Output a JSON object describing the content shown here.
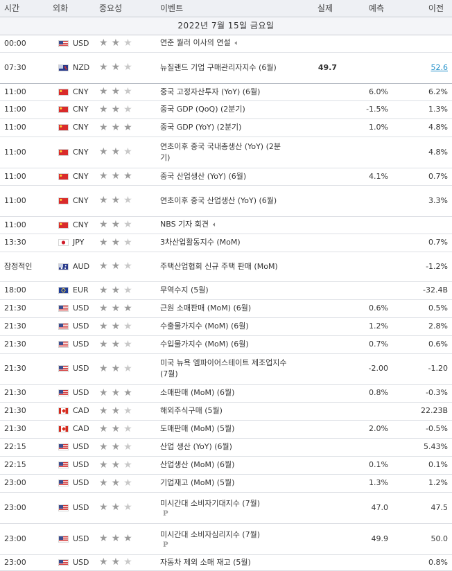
{
  "columns": {
    "time": "시간",
    "currency": "외화",
    "importance": "중요성",
    "event": "이벤트",
    "actual": "실제",
    "forecast": "예측",
    "previous": "이전"
  },
  "date_label": "2022년 7월 15일 금요일",
  "events": [
    {
      "time": "00:00",
      "flag": "us",
      "flag_icon": "us-flag-icon",
      "currency": "USD",
      "importance": 2,
      "event": "연준 월러 이사의 연설",
      "speech": true,
      "actual": "",
      "forecast": "",
      "previous": "",
      "h": 25
    },
    {
      "time": "07:30",
      "flag": "nz",
      "flag_icon": "nz-flag-icon",
      "currency": "NZD",
      "importance": 2,
      "event": "뉴질랜드 기업 구매관리자지수 (6월)",
      "actual": "49.7",
      "forecast": "",
      "previous": "52.6",
      "previous_link": true,
      "h": 45,
      "sep": true
    },
    {
      "time": "11:00",
      "flag": "cn",
      "flag_icon": "cn-flag-icon",
      "currency": "CNY",
      "importance": 2,
      "event": "중국 고정자산투자 (YoY) (6월)",
      "actual": "",
      "forecast": "6.0%",
      "previous": "6.2%",
      "h": 25
    },
    {
      "time": "11:00",
      "flag": "cn",
      "flag_icon": "cn-flag-icon",
      "currency": "CNY",
      "importance": 2,
      "event": "중국 GDP (QoQ) (2분기)",
      "actual": "",
      "forecast": "-1.5%",
      "previous": "1.3%",
      "h": 26
    },
    {
      "time": "11:00",
      "flag": "cn",
      "flag_icon": "cn-flag-icon",
      "currency": "CNY",
      "importance": 3,
      "event": "중국 GDP (YoY) (2분기)",
      "actual": "",
      "forecast": "1.0%",
      "previous": "4.8%",
      "h": 26
    },
    {
      "time": "11:00",
      "flag": "cn",
      "flag_icon": "cn-flag-icon",
      "currency": "CNY",
      "importance": 2,
      "event": "연초이후 중국 국내총생산 (YoY) (2분기)",
      "actual": "",
      "forecast": "",
      "previous": "4.8%",
      "h": 45
    },
    {
      "time": "11:00",
      "flag": "cn",
      "flag_icon": "cn-flag-icon",
      "currency": "CNY",
      "importance": 3,
      "event": "중국 산업생산 (YoY) (6월)",
      "actual": "",
      "forecast": "4.1%",
      "previous": "0.7%",
      "h": 25
    },
    {
      "time": "11:00",
      "flag": "cn",
      "flag_icon": "cn-flag-icon",
      "currency": "CNY",
      "importance": 2,
      "event": "연초이후 중국 산업생산 (YoY) (6월)",
      "actual": "",
      "forecast": "",
      "previous": "3.3%",
      "h": 45
    },
    {
      "time": "11:00",
      "flag": "cn",
      "flag_icon": "cn-flag-icon",
      "currency": "CNY",
      "importance": 2,
      "event": "NBS 기자 회견",
      "speech": true,
      "actual": "",
      "forecast": "",
      "previous": "",
      "h": 25
    },
    {
      "time": "13:30",
      "flag": "jp",
      "flag_icon": "jp-flag-icon",
      "currency": "JPY",
      "importance": 2,
      "event": "3차산업활동지수 (MoM)",
      "actual": "",
      "forecast": "",
      "previous": "0.7%",
      "h": 26
    },
    {
      "time": "잠정적인",
      "flag": "au",
      "flag_icon": "au-flag-icon",
      "currency": "AUD",
      "importance": 2,
      "event": "주택산업협회 신규 주택 판매 (MoM)",
      "actual": "",
      "forecast": "",
      "previous": "-1.2%",
      "h": 43
    },
    {
      "time": "18:00",
      "flag": "eu",
      "flag_icon": "eu-flag-icon",
      "currency": "EUR",
      "importance": 2,
      "event": "무역수지 (5월)",
      "actual": "",
      "forecast": "",
      "previous": "-32.4B",
      "h": 26
    },
    {
      "time": "21:30",
      "flag": "us",
      "flag_icon": "us-flag-icon",
      "currency": "USD",
      "importance": 3,
      "event": "근원 소매판매 (MoM) (6월)",
      "actual": "",
      "forecast": "0.6%",
      "previous": "0.5%",
      "h": 26
    },
    {
      "time": "21:30",
      "flag": "us",
      "flag_icon": "us-flag-icon",
      "currency": "USD",
      "importance": 2,
      "event": "수출물가지수 (MoM) (6월)",
      "actual": "",
      "forecast": "1.2%",
      "previous": "2.8%",
      "h": 26
    },
    {
      "time": "21:30",
      "flag": "us",
      "flag_icon": "us-flag-icon",
      "currency": "USD",
      "importance": 2,
      "event": "수입물가지수 (MoM) (6월)",
      "actual": "",
      "forecast": "0.7%",
      "previous": "0.6%",
      "h": 26
    },
    {
      "time": "21:30",
      "flag": "us",
      "flag_icon": "us-flag-icon",
      "currency": "USD",
      "importance": 2,
      "event": "미국 뉴욕 엠파이어스테이트 제조업지수 (7월)",
      "actual": "",
      "forecast": "-2.00",
      "previous": "-1.20",
      "h": 44
    },
    {
      "time": "21:30",
      "flag": "us",
      "flag_icon": "us-flag-icon",
      "currency": "USD",
      "importance": 3,
      "event": "소매판매 (MoM) (6월)",
      "actual": "",
      "forecast": "0.8%",
      "previous": "-0.3%",
      "h": 26
    },
    {
      "time": "21:30",
      "flag": "ca",
      "flag_icon": "ca-flag-icon",
      "currency": "CAD",
      "importance": 2,
      "event": "해외주식구매 (5월)",
      "actual": "",
      "forecast": "",
      "previous": "22.23B",
      "h": 26
    },
    {
      "time": "21:30",
      "flag": "ca",
      "flag_icon": "ca-flag-icon",
      "currency": "CAD",
      "importance": 2,
      "event": "도매판매 (MoM) (5월)",
      "actual": "",
      "forecast": "2.0%",
      "previous": "-0.5%",
      "h": 26
    },
    {
      "time": "22:15",
      "flag": "us",
      "flag_icon": "us-flag-icon",
      "currency": "USD",
      "importance": 2,
      "event": "산업 생산 (YoY) (6월)",
      "actual": "",
      "forecast": "",
      "previous": "5.43%",
      "h": 26
    },
    {
      "time": "22:15",
      "flag": "us",
      "flag_icon": "us-flag-icon",
      "currency": "USD",
      "importance": 2,
      "event": "산업생산 (MoM) (6월)",
      "actual": "",
      "forecast": "0.1%",
      "previous": "0.1%",
      "h": 26
    },
    {
      "time": "23:00",
      "flag": "us",
      "flag_icon": "us-flag-icon",
      "currency": "USD",
      "importance": 2,
      "event": "기업재고 (MoM) (5월)",
      "actual": "",
      "forecast": "1.3%",
      "previous": "1.2%",
      "h": 26
    },
    {
      "time": "23:00",
      "flag": "us",
      "flag_icon": "us-flag-icon",
      "currency": "USD",
      "importance": 2,
      "event": "미시간대 소비자기대지수 (7월)",
      "preliminary": true,
      "actual": "",
      "forecast": "47.0",
      "previous": "47.5",
      "h": 45
    },
    {
      "time": "23:00",
      "flag": "us",
      "flag_icon": "us-flag-icon",
      "currency": "USD",
      "importance": 3,
      "event": "미시간대 소비자심리지수 (7월)",
      "preliminary": true,
      "actual": "",
      "forecast": "49.9",
      "previous": "50.0",
      "h": 45
    },
    {
      "time": "23:00",
      "flag": "us",
      "flag_icon": "us-flag-icon",
      "currency": "USD",
      "importance": 2,
      "event": "자동차 제외 소매 재고 (5월)",
      "actual": "",
      "forecast": "",
      "previous": "0.8%",
      "h": 23
    }
  ],
  "icons": {
    "star": "star-icon",
    "speech": "speaker-icon",
    "preliminary": "preliminary-p-icon",
    "preliminary_glyph": "P"
  },
  "colors": {
    "header_bg": "#eef0f4",
    "link": "#1f8fc9",
    "star_on": "#9a9a9a",
    "star_off": "#c8c8c8"
  }
}
